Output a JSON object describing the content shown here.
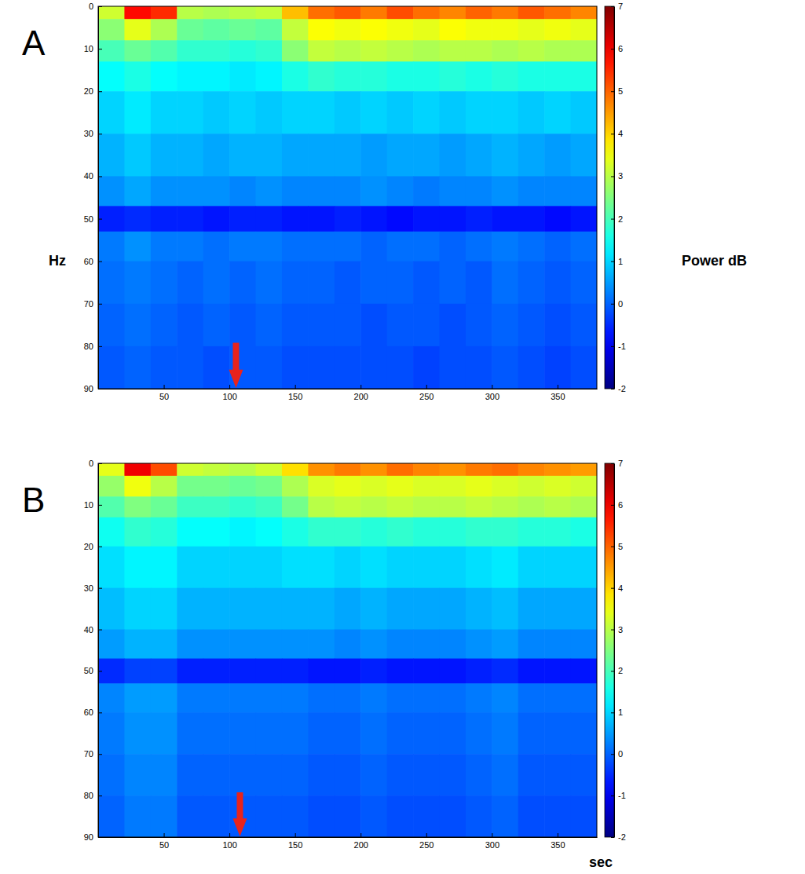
{
  "chart_data": [
    {
      "type": "heatmap",
      "title": "A",
      "ylabel": "Hz",
      "colorbar_label": "Power dB",
      "xlim": [
        0,
        380
      ],
      "xticks": [
        50,
        100,
        150,
        200,
        250,
        300,
        350
      ],
      "ylim": [
        0,
        90
      ],
      "yticks": [
        0,
        10,
        20,
        30,
        40,
        50,
        60,
        70,
        80,
        90
      ],
      "x_edges": [
        0,
        20,
        40,
        60,
        80,
        100,
        120,
        140,
        160,
        180,
        200,
        220,
        240,
        260,
        280,
        300,
        320,
        340,
        360,
        380
      ],
      "y_edges": [
        0,
        3,
        8,
        13,
        20,
        30,
        40,
        47,
        53,
        60,
        70,
        80,
        90
      ],
      "color_range": [
        -2,
        7
      ],
      "color_ticks": [
        -2,
        -1,
        0,
        1,
        2,
        3,
        4,
        5,
        6,
        7
      ],
      "arrow_x": 105,
      "cells": [
        [
          3.2,
          5.8,
          5.5,
          3.0,
          2.9,
          3.0,
          3.1,
          4.2,
          4.9,
          5.1,
          4.8,
          5.2,
          4.9,
          4.7,
          5.0,
          4.8,
          5.1,
          4.9,
          4.7
        ],
        [
          2.6,
          3.4,
          2.9,
          2.3,
          2.2,
          2.3,
          2.2,
          3.1,
          3.6,
          3.5,
          3.6,
          3.5,
          3.4,
          3.6,
          3.5,
          3.5,
          3.4,
          3.5,
          3.4
        ],
        [
          2.0,
          2.3,
          2.1,
          1.8,
          1.8,
          1.7,
          1.8,
          2.6,
          3.1,
          3.0,
          3.1,
          3.0,
          2.9,
          3.0,
          3.0,
          2.9,
          3.0,
          2.9,
          2.9
        ],
        [
          1.4,
          1.6,
          1.4,
          1.3,
          1.3,
          1.2,
          1.3,
          1.6,
          1.8,
          1.7,
          1.7,
          1.6,
          1.6,
          1.7,
          1.6,
          1.7,
          1.6,
          1.6,
          1.6
        ],
        [
          1.0,
          1.2,
          1.0,
          1.0,
          0.9,
          1.0,
          0.9,
          1.0,
          1.0,
          0.9,
          1.0,
          0.9,
          1.0,
          0.9,
          1.0,
          1.0,
          0.9,
          1.0,
          0.9
        ],
        [
          0.7,
          0.9,
          0.7,
          0.7,
          0.6,
          0.7,
          0.7,
          0.6,
          0.6,
          0.6,
          0.5,
          0.6,
          0.6,
          0.5,
          0.6,
          0.7,
          0.6,
          0.5,
          0.6
        ],
        [
          0.4,
          0.6,
          0.4,
          0.4,
          0.4,
          0.3,
          0.4,
          0.3,
          0.3,
          0.3,
          0.4,
          0.3,
          0.2,
          0.3,
          0.3,
          0.4,
          0.3,
          0.3,
          0.3
        ],
        [
          -0.6,
          -0.5,
          -0.6,
          -0.6,
          -0.7,
          -0.6,
          -0.6,
          -0.7,
          -0.7,
          -0.6,
          -0.7,
          -0.8,
          -0.7,
          -0.7,
          -0.6,
          -0.7,
          -0.7,
          -0.8,
          -0.7
        ],
        [
          0.2,
          0.4,
          0.2,
          0.2,
          0.1,
          0.2,
          0.2,
          0.1,
          0.1,
          0.1,
          0.0,
          0.1,
          0.1,
          0.0,
          0.1,
          0.2,
          0.1,
          0.0,
          0.1
        ],
        [
          0.1,
          0.2,
          0.1,
          0.0,
          0.1,
          0.0,
          0.1,
          0.0,
          0.0,
          -0.1,
          0.0,
          0.0,
          -0.1,
          0.0,
          -0.1,
          0.1,
          0.0,
          -0.1,
          0.0
        ],
        [
          0.0,
          0.1,
          0.0,
          -0.1,
          0.0,
          -0.1,
          0.0,
          -0.1,
          -0.1,
          -0.1,
          -0.2,
          -0.1,
          -0.1,
          -0.2,
          -0.1,
          0.0,
          -0.1,
          -0.2,
          -0.1
        ],
        [
          -0.1,
          0.0,
          -0.1,
          -0.1,
          -0.2,
          -0.1,
          -0.1,
          -0.2,
          -0.2,
          -0.2,
          -0.2,
          -0.2,
          -0.3,
          -0.2,
          -0.2,
          -0.1,
          -0.2,
          -0.3,
          -0.2
        ]
      ]
    },
    {
      "type": "heatmap",
      "title": "B",
      "xlabel": "sec",
      "xlim": [
        0,
        380
      ],
      "xticks": [
        50,
        100,
        150,
        200,
        250,
        300,
        350
      ],
      "ylim": [
        0,
        90
      ],
      "yticks": [
        0,
        10,
        20,
        30,
        40,
        50,
        60,
        70,
        80,
        90
      ],
      "x_edges": [
        0,
        20,
        40,
        60,
        80,
        100,
        120,
        140,
        160,
        180,
        200,
        220,
        240,
        260,
        280,
        300,
        320,
        340,
        360,
        380
      ],
      "y_edges": [
        0,
        3,
        8,
        13,
        20,
        30,
        40,
        47,
        53,
        60,
        70,
        80,
        90
      ],
      "color_range": [
        -2,
        7
      ],
      "color_ticks": [
        -2,
        -1,
        0,
        1,
        2,
        3,
        4,
        5,
        6,
        7
      ],
      "arrow_x": 108,
      "cells": [
        [
          3.4,
          6.0,
          5.2,
          3.2,
          3.1,
          3.0,
          3.2,
          3.9,
          4.6,
          4.8,
          4.6,
          4.9,
          4.7,
          4.6,
          4.8,
          4.9,
          4.7,
          4.6,
          4.5
        ],
        [
          2.7,
          3.5,
          3.0,
          2.4,
          2.4,
          2.3,
          2.4,
          2.9,
          3.3,
          3.4,
          3.3,
          3.4,
          3.3,
          3.3,
          3.4,
          3.3,
          3.2,
          3.3,
          3.2
        ],
        [
          2.1,
          2.5,
          2.3,
          1.9,
          1.9,
          1.8,
          1.9,
          2.4,
          3.0,
          3.1,
          3.0,
          3.1,
          3.0,
          3.0,
          3.1,
          3.0,
          2.9,
          3.0,
          2.9
        ],
        [
          1.5,
          1.8,
          1.7,
          1.4,
          1.4,
          1.3,
          1.4,
          1.6,
          1.8,
          1.8,
          1.7,
          1.8,
          1.7,
          1.7,
          1.8,
          1.8,
          1.7,
          1.7,
          1.6
        ],
        [
          1.1,
          1.3,
          1.3,
          1.0,
          1.0,
          1.0,
          1.0,
          1.1,
          1.1,
          1.0,
          1.1,
          1.0,
          1.0,
          1.0,
          1.1,
          1.2,
          1.0,
          1.0,
          1.0
        ],
        [
          0.8,
          1.0,
          1.0,
          0.7,
          0.7,
          0.7,
          0.7,
          0.7,
          0.7,
          0.6,
          0.7,
          0.6,
          0.6,
          0.6,
          0.7,
          0.8,
          0.6,
          0.6,
          0.6
        ],
        [
          0.5,
          0.7,
          0.7,
          0.4,
          0.4,
          0.4,
          0.4,
          0.4,
          0.4,
          0.3,
          0.4,
          0.3,
          0.3,
          0.3,
          0.4,
          0.5,
          0.3,
          0.3,
          0.3
        ],
        [
          -0.5,
          -0.3,
          -0.3,
          -0.6,
          -0.6,
          -0.6,
          -0.6,
          -0.6,
          -0.7,
          -0.7,
          -0.6,
          -0.7,
          -0.7,
          -0.7,
          -0.6,
          -0.5,
          -0.7,
          -0.7,
          -0.7
        ],
        [
          0.3,
          0.5,
          0.5,
          0.2,
          0.2,
          0.2,
          0.2,
          0.2,
          0.1,
          0.1,
          0.2,
          0.1,
          0.1,
          0.1,
          0.2,
          0.3,
          0.1,
          0.1,
          0.1
        ],
        [
          0.2,
          0.4,
          0.4,
          0.1,
          0.1,
          0.1,
          0.1,
          0.1,
          0.0,
          0.0,
          0.1,
          0.0,
          0.0,
          0.0,
          0.1,
          0.2,
          0.0,
          0.0,
          0.0
        ],
        [
          0.1,
          0.3,
          0.3,
          0.0,
          0.0,
          0.0,
          0.0,
          0.0,
          -0.1,
          -0.1,
          0.0,
          -0.1,
          -0.1,
          -0.1,
          0.0,
          0.1,
          -0.1,
          -0.1,
          -0.1
        ],
        [
          0.0,
          0.2,
          0.2,
          -0.1,
          -0.1,
          -0.1,
          -0.1,
          -0.1,
          -0.2,
          -0.2,
          -0.1,
          -0.2,
          -0.2,
          -0.2,
          -0.1,
          0.0,
          -0.2,
          -0.2,
          -0.2
        ]
      ]
    }
  ]
}
